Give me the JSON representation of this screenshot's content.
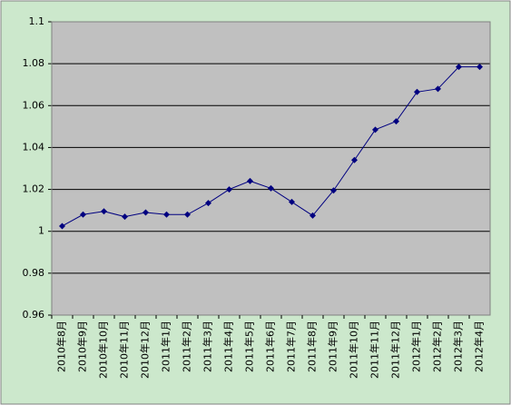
{
  "chart_data": {
    "type": "line",
    "categories": [
      "2010年8月",
      "2010年9月",
      "2010年10月",
      "2010年11月",
      "2010年12月",
      "2011年1月",
      "2011年2月",
      "2011年3月",
      "2011年4月",
      "2011年5月",
      "2011年6月",
      "2011年7月",
      "2011年8月",
      "2011年9月",
      "2011年10月",
      "2011年11月",
      "2011年12月",
      "2012年1月",
      "2012年2月",
      "2012年3月",
      "2012年4月"
    ],
    "series": [
      {
        "color": "#000080",
        "values": [
          1.0025,
          1.008,
          1.0095,
          1.007,
          1.009,
          1.008,
          1.008,
          1.0135,
          1.02,
          1.024,
          1.0205,
          1.014,
          1.0075,
          1.0195,
          1.034,
          1.0485,
          1.0525,
          1.0665,
          1.068,
          1.0785,
          1.0785
        ]
      }
    ],
    "ylim": [
      0.96,
      1.1
    ],
    "yticks": [
      0.96,
      0.98,
      1,
      1.02,
      1.04,
      1.06,
      1.08,
      1.1
    ],
    "grid": true
  }
}
